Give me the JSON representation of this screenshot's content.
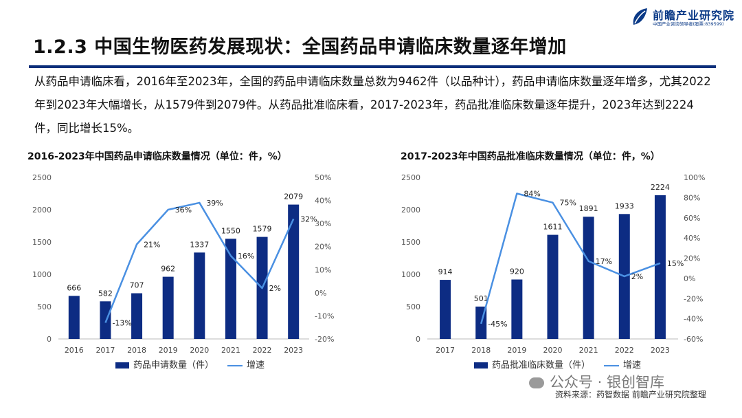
{
  "logo": {
    "name": "前瞻产业研究院",
    "tagline": "中国产业咨询领导者(股票:839599)",
    "icon": "leaf-logo-icon"
  },
  "slide_title": "1.2.3 中国生物医药发展现状：全国药品申请临床数量逐年增加",
  "intro_text": "从药品申请临床看，2016年至2023年，全国的药品申请临床数量总数为9462件（以品种计），药品申请临床数量逐年增多，尤其2022年到2023年大幅增长，从1579件到2079件。从药品批准临床看，2017-2023年，药品批准临床数量逐年提升，2023年达到2224件，同比增长15%。",
  "colors": {
    "bar": "#0d2c83",
    "line": "#4a90e2",
    "title_rule": "#0b2f7a"
  },
  "chart_data": [
    {
      "type": "bar",
      "title": "2016-2023年中国药品申请临床数量情况（单位：件，%）",
      "categories": [
        "2016",
        "2017",
        "2018",
        "2019",
        "2020",
        "2021",
        "2022",
        "2023"
      ],
      "series": [
        {
          "name": "药品申请数量（件）",
          "type": "bar",
          "axis": "left",
          "values": [
            666,
            582,
            707,
            962,
            1337,
            1550,
            1579,
            2079
          ],
          "labels": [
            "666",
            "582",
            "707",
            "962",
            "1337",
            "1550",
            "1579",
            "2079"
          ]
        },
        {
          "name": "增速",
          "type": "line",
          "axis": "right",
          "values": [
            null,
            -13,
            21,
            36,
            39,
            16,
            2,
            32
          ],
          "labels": [
            "",
            "-13%",
            "21%",
            "36%",
            "39%",
            "16%",
            "2%",
            "32%"
          ]
        }
      ],
      "left_axis": {
        "ylim": [
          0,
          2500
        ],
        "ticks": [
          "0",
          "500",
          "1000",
          "1500",
          "2000",
          "2500"
        ]
      },
      "right_axis": {
        "ylim": [
          -20,
          50
        ],
        "ticks": [
          "-20%",
          "-10%",
          "0%",
          "10%",
          "20%",
          "30%",
          "40%",
          "50%"
        ]
      },
      "legend_position": "bottom"
    },
    {
      "type": "bar",
      "title": "2017-2023年中国药品批准临床数量情况（单位：件，%）",
      "categories": [
        "2017",
        "2018",
        "2019",
        "2020",
        "2021",
        "2022",
        "2023"
      ],
      "series": [
        {
          "name": "药品批准临床数量（件）",
          "type": "bar",
          "axis": "left",
          "values": [
            914,
            501,
            920,
            1611,
            1891,
            1933,
            2224
          ],
          "labels": [
            "914",
            "501",
            "920",
            "1611",
            "1891",
            "1933",
            "2224"
          ]
        },
        {
          "name": "增速",
          "type": "line",
          "axis": "right",
          "values": [
            null,
            -45,
            84,
            75,
            17,
            2,
            15
          ],
          "labels": [
            "",
            "-45%",
            "84%",
            "75%",
            "17%",
            "2%",
            "15%"
          ]
        }
      ],
      "left_axis": {
        "ylim": [
          0,
          2500
        ],
        "ticks": [
          "0",
          "500",
          "1000",
          "1500",
          "2000",
          "2500"
        ]
      },
      "right_axis": {
        "ylim": [
          -60,
          100
        ],
        "ticks": [
          "-60%",
          "-40%",
          "-20%",
          "0%",
          "20%",
          "40%",
          "60%",
          "80%",
          "100%"
        ]
      },
      "legend_position": "bottom"
    }
  ],
  "source_note": "资料来源：药智数据 前瞻产业研究院整理",
  "watermark": {
    "text": "公众号 · 银创智库",
    "icon": "wechat-icon"
  }
}
